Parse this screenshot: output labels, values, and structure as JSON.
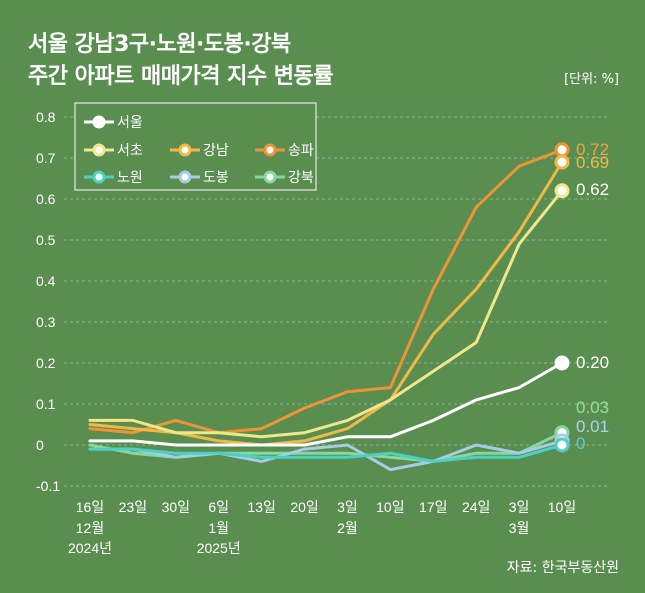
{
  "title_line1": "서울 강남3구·노원·도봉·강북",
  "title_line2": "주간 아파트 매매가격 지수 변동률",
  "unit": "[단위: %]",
  "source": "자료: 한국부동산원",
  "chart_data": {
    "type": "line",
    "ylim": [
      -0.1,
      0.8
    ],
    "yticks": [
      "0.8",
      "0.7",
      "0.6",
      "0.5",
      "0.4",
      "0.3",
      "0.2",
      "0.1",
      "0",
      "-0.1"
    ],
    "x_labels": [
      {
        "day": "16일",
        "month": "12월",
        "year": "2024년"
      },
      {
        "day": "23일"
      },
      {
        "day": "30일"
      },
      {
        "day": "6일",
        "month": "1월",
        "year": "2025년"
      },
      {
        "day": "13일"
      },
      {
        "day": "20일"
      },
      {
        "day": "3일",
        "month": "2월"
      },
      {
        "day": "10일"
      },
      {
        "day": "17일"
      },
      {
        "day": "24일"
      },
      {
        "day": "3일",
        "month": "3월"
      },
      {
        "day": "10일"
      }
    ],
    "legend_position": "top-left",
    "series": [
      {
        "name": "서울",
        "color": "#ffffff",
        "end_label": "0.20",
        "label_color": "#ffffff",
        "values": [
          0.01,
          0.01,
          0.0,
          0.0,
          0.0,
          0.0,
          0.02,
          0.02,
          0.06,
          0.11,
          0.14,
          0.2
        ]
      },
      {
        "name": "서초",
        "color": "#f0e68c",
        "end_label": "0.62",
        "label_color": "#ffffff",
        "values": [
          0.06,
          0.06,
          0.03,
          0.03,
          0.02,
          0.03,
          0.06,
          0.11,
          0.18,
          0.25,
          0.49,
          0.62
        ]
      },
      {
        "name": "강남",
        "color": "#f2b847",
        "end_label": "0.69",
        "label_color": "#f2b847",
        "values": [
          0.05,
          0.04,
          0.03,
          0.01,
          0.0,
          0.01,
          0.04,
          0.11,
          0.27,
          0.38,
          0.52,
          0.69
        ]
      },
      {
        "name": "송파",
        "color": "#ee9338",
        "end_label": "0.72",
        "label_color": "#f0a046",
        "values": [
          0.04,
          0.03,
          0.06,
          0.03,
          0.04,
          0.09,
          0.13,
          0.14,
          0.38,
          0.58,
          0.68,
          0.72
        ]
      },
      {
        "name": "노원",
        "color": "#4dd0c4",
        "end_label": "0",
        "label_color": "#5bc8e6",
        "values": [
          -0.01,
          -0.01,
          -0.02,
          -0.02,
          -0.03,
          -0.03,
          -0.03,
          -0.02,
          -0.04,
          -0.03,
          -0.03,
          0.0
        ]
      },
      {
        "name": "도봉",
        "color": "#a8cce6",
        "end_label": "0.01",
        "label_color": "#a8d4f0",
        "values": [
          -0.01,
          -0.01,
          -0.03,
          -0.02,
          -0.04,
          -0.01,
          0.0,
          -0.06,
          -0.04,
          0.0,
          -0.02,
          0.01
        ]
      },
      {
        "name": "강북",
        "color": "#86d89e",
        "end_label": "0.03",
        "label_color": "#8be0a0",
        "values": [
          0.0,
          -0.02,
          -0.03,
          -0.02,
          -0.02,
          -0.02,
          -0.02,
          -0.03,
          -0.04,
          -0.02,
          -0.02,
          0.03
        ]
      }
    ]
  }
}
